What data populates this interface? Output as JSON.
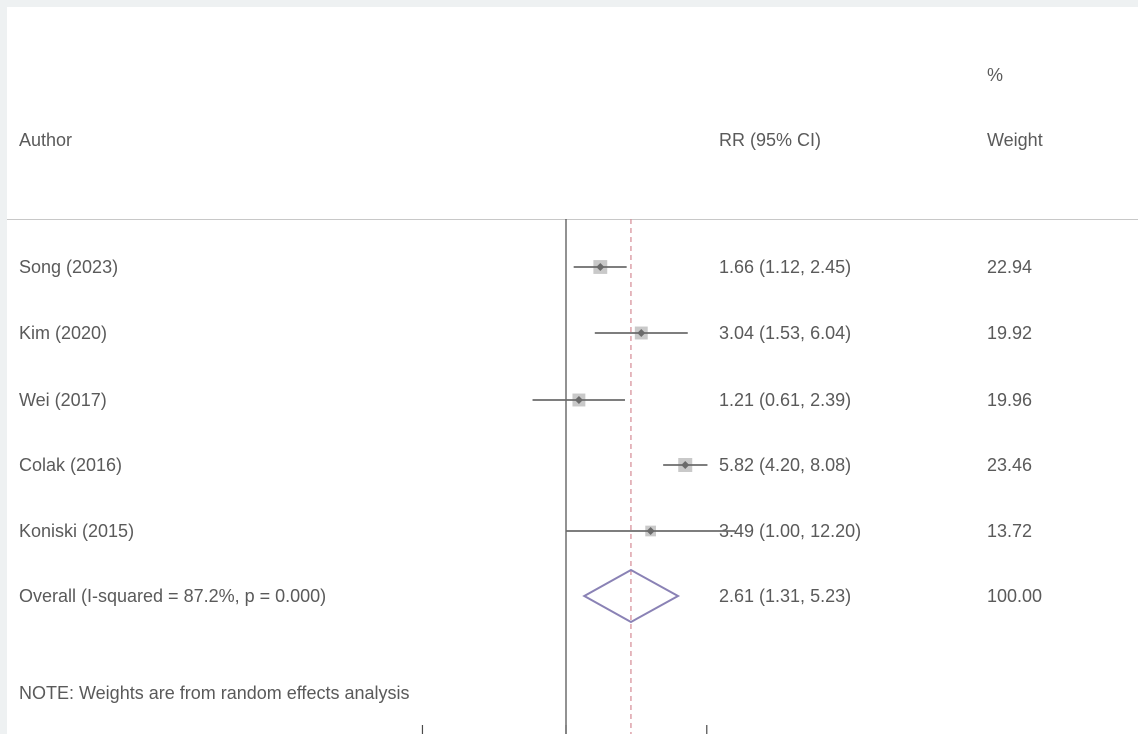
{
  "header": {
    "author_label": "Author",
    "estimate_label": "RR (95% CI)",
    "weight_label_top": "%",
    "weight_label_bottom": "Weight"
  },
  "chart_data": {
    "type": "forest",
    "measure": "RR",
    "null_value": 1,
    "pooled_estimate": 2.61,
    "x_scale": "log",
    "studies": [
      {
        "author": "Song (2023)",
        "rr": 1.66,
        "lower": 1.12,
        "upper": 2.45,
        "ci_text": "1.66 (1.12, 2.45)",
        "weight": 22.94,
        "weight_text": "22.94"
      },
      {
        "author": "Kim (2020)",
        "rr": 3.04,
        "lower": 1.53,
        "upper": 6.04,
        "ci_text": "3.04 (1.53, 6.04)",
        "weight": 19.92,
        "weight_text": "19.92"
      },
      {
        "author": "Wei (2017)",
        "rr": 1.21,
        "lower": 0.61,
        "upper": 2.39,
        "ci_text": "1.21 (0.61, 2.39)",
        "weight": 19.96,
        "weight_text": "19.96"
      },
      {
        "author": "Colak (2016)",
        "rr": 5.82,
        "lower": 4.2,
        "upper": 8.08,
        "ci_text": "5.82 (4.20, 8.08)",
        "weight": 23.46,
        "weight_text": "23.46"
      },
      {
        "author": "Koniski (2015)",
        "rr": 3.49,
        "lower": 1.0,
        "upper": 12.2,
        "ci_text": "3.49 (1.00, 12.20)",
        "weight": 13.72,
        "weight_text": "13.72"
      }
    ],
    "overall": {
      "label": "Overall  (I-squared = 87.2%, p = 0.000)",
      "rr": 2.61,
      "lower": 1.31,
      "upper": 5.23,
      "ci_text": "2.61 (1.31, 5.23)",
      "weight_text": "100.00"
    },
    "note": "NOTE: Weights are from random effects analysis",
    "colors": {
      "ci_line": "#6b6b6b",
      "weight_box": "#c9c9c9",
      "point": "#6b6b6b",
      "diamond": "#8a82b5",
      "ref_line": "#d48a94",
      "null_line": "#4a4a4a"
    }
  }
}
